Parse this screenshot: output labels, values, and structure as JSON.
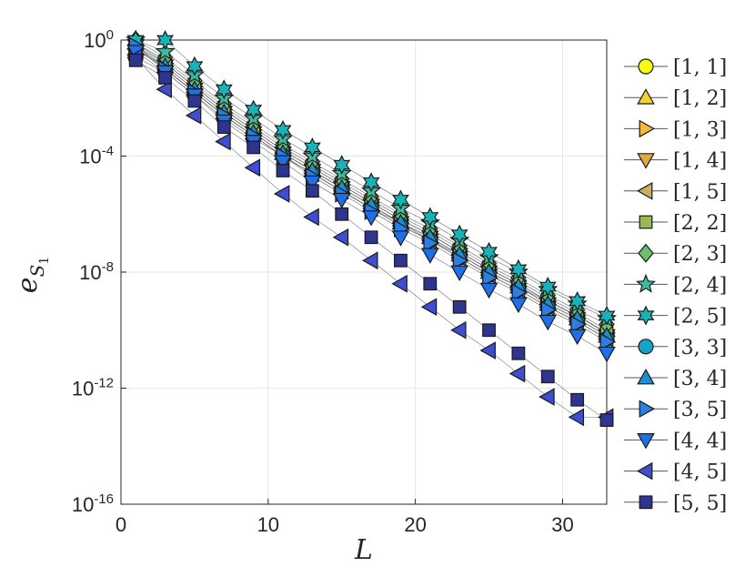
{
  "chart_data": {
    "type": "line",
    "title": "",
    "xlabel": "L",
    "ylabel_base": "e",
    "ylabel_sub": "S",
    "ylabel_subsub": "1",
    "xlim": [
      0,
      33
    ],
    "ylim_log10": [
      -16,
      0
    ],
    "yscale": "log",
    "x_ticks": [
      0,
      10,
      20,
      30
    ],
    "x_tick_labels": [
      "0",
      "10",
      "20",
      "30"
    ],
    "y_ticks_log10": [
      0,
      -4,
      -8,
      -12,
      -16
    ],
    "y_tick_labels": [
      {
        "base": "10",
        "exp": "0"
      },
      {
        "base": "10",
        "exp": "-4"
      },
      {
        "base": "10",
        "exp": "-8"
      },
      {
        "base": "10",
        "exp": "-12"
      },
      {
        "base": "10",
        "exp": "-16"
      }
    ],
    "grid": true,
    "legend_position": "outside-right",
    "x": [
      1,
      3,
      5,
      7,
      9,
      11,
      13,
      15,
      17,
      19,
      21,
      23,
      25,
      27,
      29,
      31,
      33
    ],
    "series": [
      {
        "name": "[1, 1]",
        "marker": "circle",
        "color": "#f9fb0e",
        "log10_values": [
          -0.3,
          -1.0,
          -1.8,
          -2.6,
          -3.3,
          -4.0,
          -4.6,
          -5.2,
          -5.8,
          -6.3,
          -6.9,
          -7.4,
          -8.0,
          -8.5,
          -9.0,
          -9.5,
          -10.1
        ]
      },
      {
        "name": "[1, 2]",
        "marker": "triangle-up",
        "color": "#f5d231",
        "log10_values": [
          -0.1,
          -0.7,
          -1.5,
          -2.3,
          -3.0,
          -3.7,
          -4.3,
          -4.9,
          -5.5,
          -6.1,
          -6.6,
          -7.2,
          -7.8,
          -8.3,
          -8.9,
          -9.4,
          -10.0
        ]
      },
      {
        "name": "[1, 3]",
        "marker": "triangle-right",
        "color": "#f6b83f",
        "log10_values": [
          -0.2,
          -0.8,
          -1.6,
          -2.4,
          -3.1,
          -3.8,
          -4.4,
          -5.0,
          -5.6,
          -6.2,
          -6.7,
          -7.3,
          -7.9,
          -8.4,
          -9.0,
          -9.5,
          -10.1
        ]
      },
      {
        "name": "[1, 4]",
        "marker": "triangle-down",
        "color": "#e4a742",
        "log10_values": [
          -0.2,
          -0.9,
          -1.7,
          -2.5,
          -3.2,
          -3.9,
          -4.5,
          -5.1,
          -5.7,
          -6.3,
          -6.8,
          -7.4,
          -8.0,
          -8.5,
          -9.1,
          -9.6,
          -10.2
        ]
      },
      {
        "name": "[1, 5]",
        "marker": "triangle-left",
        "color": "#c6b25e",
        "log10_values": [
          -0.3,
          -1.0,
          -1.8,
          -2.6,
          -3.3,
          -4.0,
          -4.6,
          -5.2,
          -5.8,
          -6.4,
          -6.9,
          -7.5,
          -8.1,
          -8.6,
          -9.2,
          -9.7,
          -10.3
        ]
      },
      {
        "name": "[2, 2]",
        "marker": "square",
        "color": "#99b952",
        "log10_values": [
          -0.1,
          -0.8,
          -1.6,
          -2.4,
          -3.1,
          -3.8,
          -4.4,
          -5.0,
          -5.6,
          -6.2,
          -6.7,
          -7.3,
          -7.9,
          -8.4,
          -9.0,
          -9.5,
          -10.1
        ]
      },
      {
        "name": "[2, 3]",
        "marker": "diamond",
        "color": "#6fbe6e",
        "log10_values": [
          -0.0,
          -0.6,
          -1.4,
          -2.2,
          -2.9,
          -3.6,
          -4.2,
          -4.8,
          -5.4,
          -6.0,
          -6.5,
          -7.1,
          -7.7,
          -8.2,
          -8.8,
          -9.3,
          -9.8
        ]
      },
      {
        "name": "[2, 4]",
        "marker": "star5",
        "color": "#3eb89f",
        "log10_values": [
          0.0,
          -0.4,
          -1.2,
          -2.0,
          -2.7,
          -3.4,
          -4.0,
          -4.6,
          -5.2,
          -5.8,
          -6.3,
          -6.9,
          -7.5,
          -8.0,
          -8.6,
          -9.1,
          -9.6
        ]
      },
      {
        "name": "[2, 5]",
        "marker": "star6",
        "color": "#17b3b8",
        "log10_values": [
          0.0,
          0.0,
          -0.9,
          -1.7,
          -2.4,
          -3.1,
          -3.7,
          -4.3,
          -4.9,
          -5.5,
          -6.1,
          -6.7,
          -7.3,
          -7.9,
          -8.5,
          -9.0,
          -9.5
        ]
      },
      {
        "name": "[3, 3]",
        "marker": "circle",
        "color": "#17a3c9",
        "log10_values": [
          -0.6,
          -1.1,
          -1.9,
          -2.7,
          -3.4,
          -4.0,
          -4.6,
          -5.2,
          -5.8,
          -6.4,
          -6.9,
          -7.5,
          -8.1,
          -8.6,
          -9.2,
          -9.7,
          -10.3
        ]
      },
      {
        "name": "[3, 4]",
        "marker": "triangle-up",
        "color": "#1b8ed2",
        "log10_values": [
          -0.3,
          -0.9,
          -1.7,
          -2.5,
          -3.2,
          -3.9,
          -4.5,
          -5.1,
          -5.7,
          -6.3,
          -6.8,
          -7.4,
          -8.0,
          -8.5,
          -9.1,
          -9.6,
          -10.2
        ]
      },
      {
        "name": "[3, 5]",
        "marker": "triangle-right",
        "color": "#2a7fe0",
        "log10_values": [
          -0.2,
          -1.0,
          -1.8,
          -2.6,
          -3.3,
          -4.0,
          -4.7,
          -5.3,
          -5.9,
          -6.5,
          -7.0,
          -7.6,
          -8.2,
          -8.7,
          -9.3,
          -9.8,
          -10.4
        ]
      },
      {
        "name": "[4, 4]",
        "marker": "triangle-down",
        "color": "#1f6fe6",
        "log10_values": [
          -0.4,
          -1.1,
          -1.9,
          -2.8,
          -3.5,
          -4.2,
          -4.9,
          -5.5,
          -6.1,
          -6.8,
          -7.4,
          -8.0,
          -8.6,
          -9.1,
          -9.7,
          -10.2,
          -10.8
        ]
      },
      {
        "name": "[4, 5]",
        "marker": "triangle-left",
        "color": "#3f4ed1",
        "log10_values": [
          -0.6,
          -1.7,
          -2.6,
          -3.5,
          -4.4,
          -5.3,
          -6.1,
          -6.8,
          -7.6,
          -8.4,
          -9.2,
          -10.0,
          -10.7,
          -11.5,
          -12.3,
          -13.0,
          -13.0
        ]
      },
      {
        "name": "[5, 5]",
        "marker": "square",
        "color": "#2d3590",
        "log10_values": [
          -0.7,
          -1.3,
          -2.1,
          -3.0,
          -3.7,
          -4.5,
          -5.2,
          -6.0,
          -6.8,
          -7.6,
          -8.4,
          -9.2,
          -10.0,
          -10.8,
          -11.6,
          -12.4,
          -13.1
        ]
      }
    ]
  }
}
